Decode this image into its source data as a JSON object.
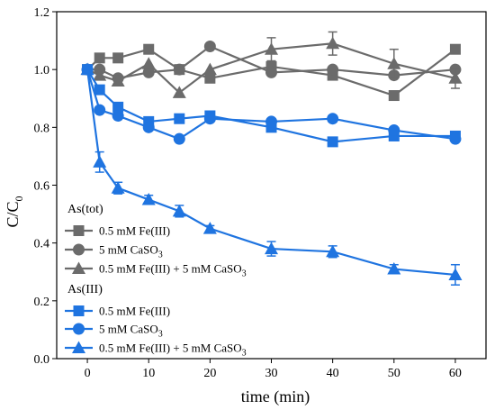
{
  "chart_data": {
    "type": "line",
    "xlabel": "time (min)",
    "ylabel_main": "C/C",
    "ylabel_sub": "0",
    "xlim": [
      -5,
      65
    ],
    "ylim": [
      0.0,
      1.2
    ],
    "xticks": [
      0,
      10,
      20,
      30,
      40,
      50,
      60
    ],
    "yticks": [
      0.0,
      0.2,
      0.4,
      0.6,
      0.8,
      1.0,
      1.2
    ],
    "ytick_labels": [
      "0.0",
      "0.2",
      "0.4",
      "0.6",
      "0.8",
      "1.0",
      "1.2"
    ],
    "colors": {
      "tot": "#6b6b6b",
      "iii": "#1f74e0"
    },
    "legend_groups": [
      {
        "key": "tot",
        "title": "As(tot)"
      },
      {
        "key": "iii",
        "title": "As(III)"
      }
    ],
    "series": [
      {
        "group": "tot",
        "marker": "square",
        "name": "0.5 mM Fe(III)",
        "x": [
          0,
          2,
          5,
          10,
          15,
          20,
          30,
          40,
          50,
          60
        ],
        "y": [
          1.0,
          1.04,
          1.04,
          1.07,
          1.0,
          0.97,
          1.01,
          0.98,
          0.91,
          1.07
        ],
        "err": [
          0,
          0,
          0,
          0,
          0,
          0,
          0,
          0,
          0,
          0
        ]
      },
      {
        "group": "tot",
        "marker": "circle",
        "name": "5 mM CaSO",
        "name_sub": "3",
        "x": [
          0,
          2,
          5,
          10,
          15,
          20,
          30,
          40,
          50,
          60
        ],
        "y": [
          1.0,
          1.0,
          0.97,
          0.99,
          1.0,
          1.08,
          0.99,
          1.0,
          0.98,
          1.0
        ],
        "err": [
          0,
          0,
          0,
          0,
          0,
          0,
          0,
          0,
          0,
          0
        ]
      },
      {
        "group": "tot",
        "marker": "triangle",
        "name": "0.5 mM Fe(III) + 5 mM CaSO",
        "name_sub": "3",
        "x": [
          0,
          2,
          5,
          10,
          15,
          20,
          30,
          40,
          50,
          60
        ],
        "y": [
          1.0,
          0.98,
          0.96,
          1.02,
          0.92,
          1.0,
          1.07,
          1.09,
          1.02,
          0.97
        ],
        "err": [
          0,
          0,
          0,
          0,
          0,
          0,
          0.04,
          0.04,
          0.05,
          0.035
        ]
      },
      {
        "group": "iii",
        "marker": "square",
        "name": "0.5 mM Fe(III)",
        "x": [
          0,
          2,
          5,
          10,
          15,
          20,
          30,
          40,
          50,
          60
        ],
        "y": [
          1.0,
          0.93,
          0.87,
          0.82,
          0.83,
          0.84,
          0.8,
          0.75,
          0.77,
          0.77
        ],
        "err": [
          0,
          0,
          0,
          0,
          0,
          0,
          0,
          0,
          0,
          0
        ]
      },
      {
        "group": "iii",
        "marker": "circle",
        "name": "5 mM CaSO",
        "name_sub": "3",
        "x": [
          0,
          2,
          5,
          10,
          15,
          20,
          30,
          40,
          50,
          60
        ],
        "y": [
          1.0,
          0.86,
          0.84,
          0.8,
          0.76,
          0.83,
          0.82,
          0.83,
          0.79,
          0.76
        ],
        "err": [
          0,
          0,
          0,
          0,
          0,
          0,
          0,
          0,
          0,
          0
        ]
      },
      {
        "group": "iii",
        "marker": "triangle",
        "name": "0.5 mM Fe(III) + 5 mM CaSO",
        "name_sub": "3",
        "x": [
          0,
          2,
          5,
          10,
          15,
          20,
          30,
          40,
          50,
          60
        ],
        "y": [
          1.0,
          0.68,
          0.59,
          0.55,
          0.51,
          0.45,
          0.38,
          0.37,
          0.31,
          0.29
        ],
        "err": [
          0,
          0.035,
          0.02,
          0.015,
          0.02,
          0.01,
          0.025,
          0.02,
          0.015,
          0.035
        ]
      }
    ]
  }
}
